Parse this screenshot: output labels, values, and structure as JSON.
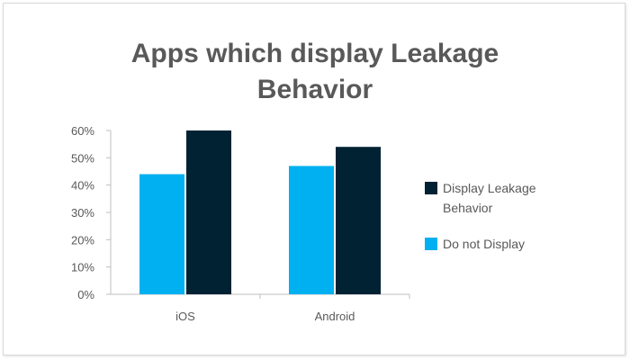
{
  "chart_data": {
    "type": "bar",
    "title": "Apps which display Leakage Behavior",
    "title_lines": [
      "Apps which display Leakage",
      "Behavior"
    ],
    "categories": [
      "iOS",
      "Android"
    ],
    "series": [
      {
        "name": "Do not Display",
        "values": [
          44,
          47
        ],
        "color": "#00b0f0"
      },
      {
        "name": "Display Leakage Behavior",
        "values": [
          60,
          54
        ],
        "color": "#002233"
      }
    ],
    "legend_order": [
      1,
      0
    ],
    "yticks": [
      "0%",
      "10%",
      "20%",
      "30%",
      "40%",
      "50%",
      "60%"
    ],
    "ylim": [
      0,
      60
    ],
    "xlabel": "",
    "ylabel": "",
    "grid": false,
    "legend_position": "right"
  }
}
